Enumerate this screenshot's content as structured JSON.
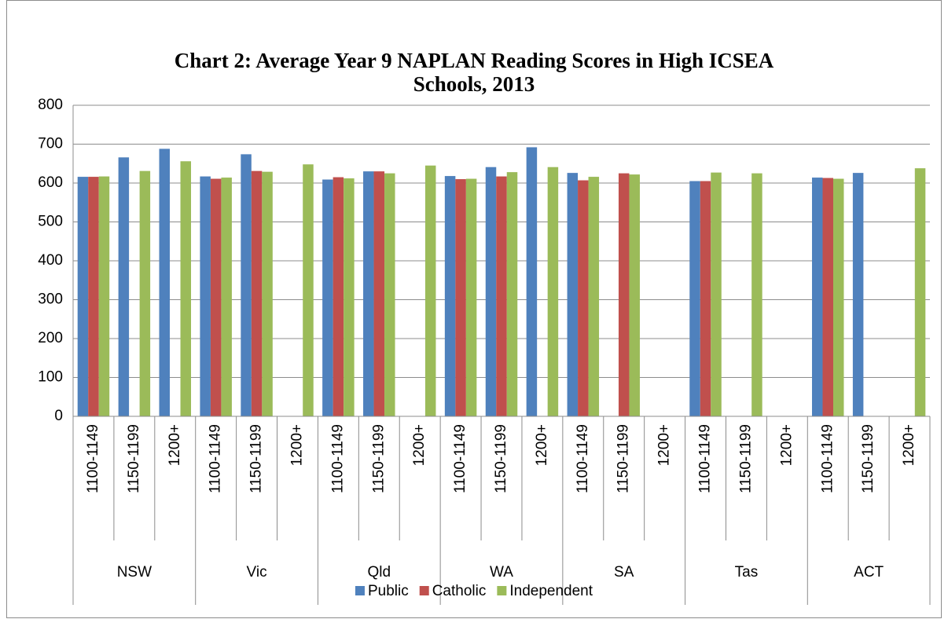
{
  "chart_data": {
    "type": "bar",
    "title": [
      "Chart 2: Average Year 9 NAPLAN Reading Scores in High ICSEA",
      "Schools, 2013"
    ],
    "groups": [
      "NSW",
      "Vic",
      "Qld",
      "WA",
      "SA",
      "Tas",
      "ACT"
    ],
    "categories": [
      "1100-1149",
      "1150-1199",
      "1200+",
      "1100-1149",
      "1150-1199",
      "1200+",
      "1100-1149",
      "1150-1199",
      "1200+",
      "1100-1149",
      "1150-1199",
      "1200+",
      "1100-1149",
      "1150-1199",
      "1200+",
      "1100-1149",
      "1150-1199",
      "1200+",
      "1100-1149",
      "1150-1199",
      "1200+"
    ],
    "series": [
      {
        "name": "Public",
        "color": "#4f81bd",
        "values": [
          616,
          666,
          688,
          617,
          674,
          null,
          609,
          630,
          null,
          618,
          641,
          692,
          626,
          null,
          null,
          605,
          null,
          null,
          614,
          626,
          null
        ]
      },
      {
        "name": "Catholic",
        "color": "#c0504d",
        "values": [
          616,
          null,
          null,
          611,
          631,
          null,
          615,
          630,
          null,
          610,
          617,
          null,
          607,
          625,
          null,
          605,
          null,
          null,
          613,
          null,
          null
        ]
      },
      {
        "name": "Independent",
        "color": "#9bbb59",
        "values": [
          617,
          631,
          656,
          614,
          629,
          648,
          612,
          625,
          645,
          611,
          628,
          641,
          616,
          622,
          null,
          627,
          625,
          null,
          611,
          null,
          638
        ]
      }
    ],
    "ylim": [
      0,
      800
    ],
    "yticks": [
      0,
      100,
      200,
      300,
      400,
      500,
      600,
      700,
      800
    ],
    "grid": true
  }
}
